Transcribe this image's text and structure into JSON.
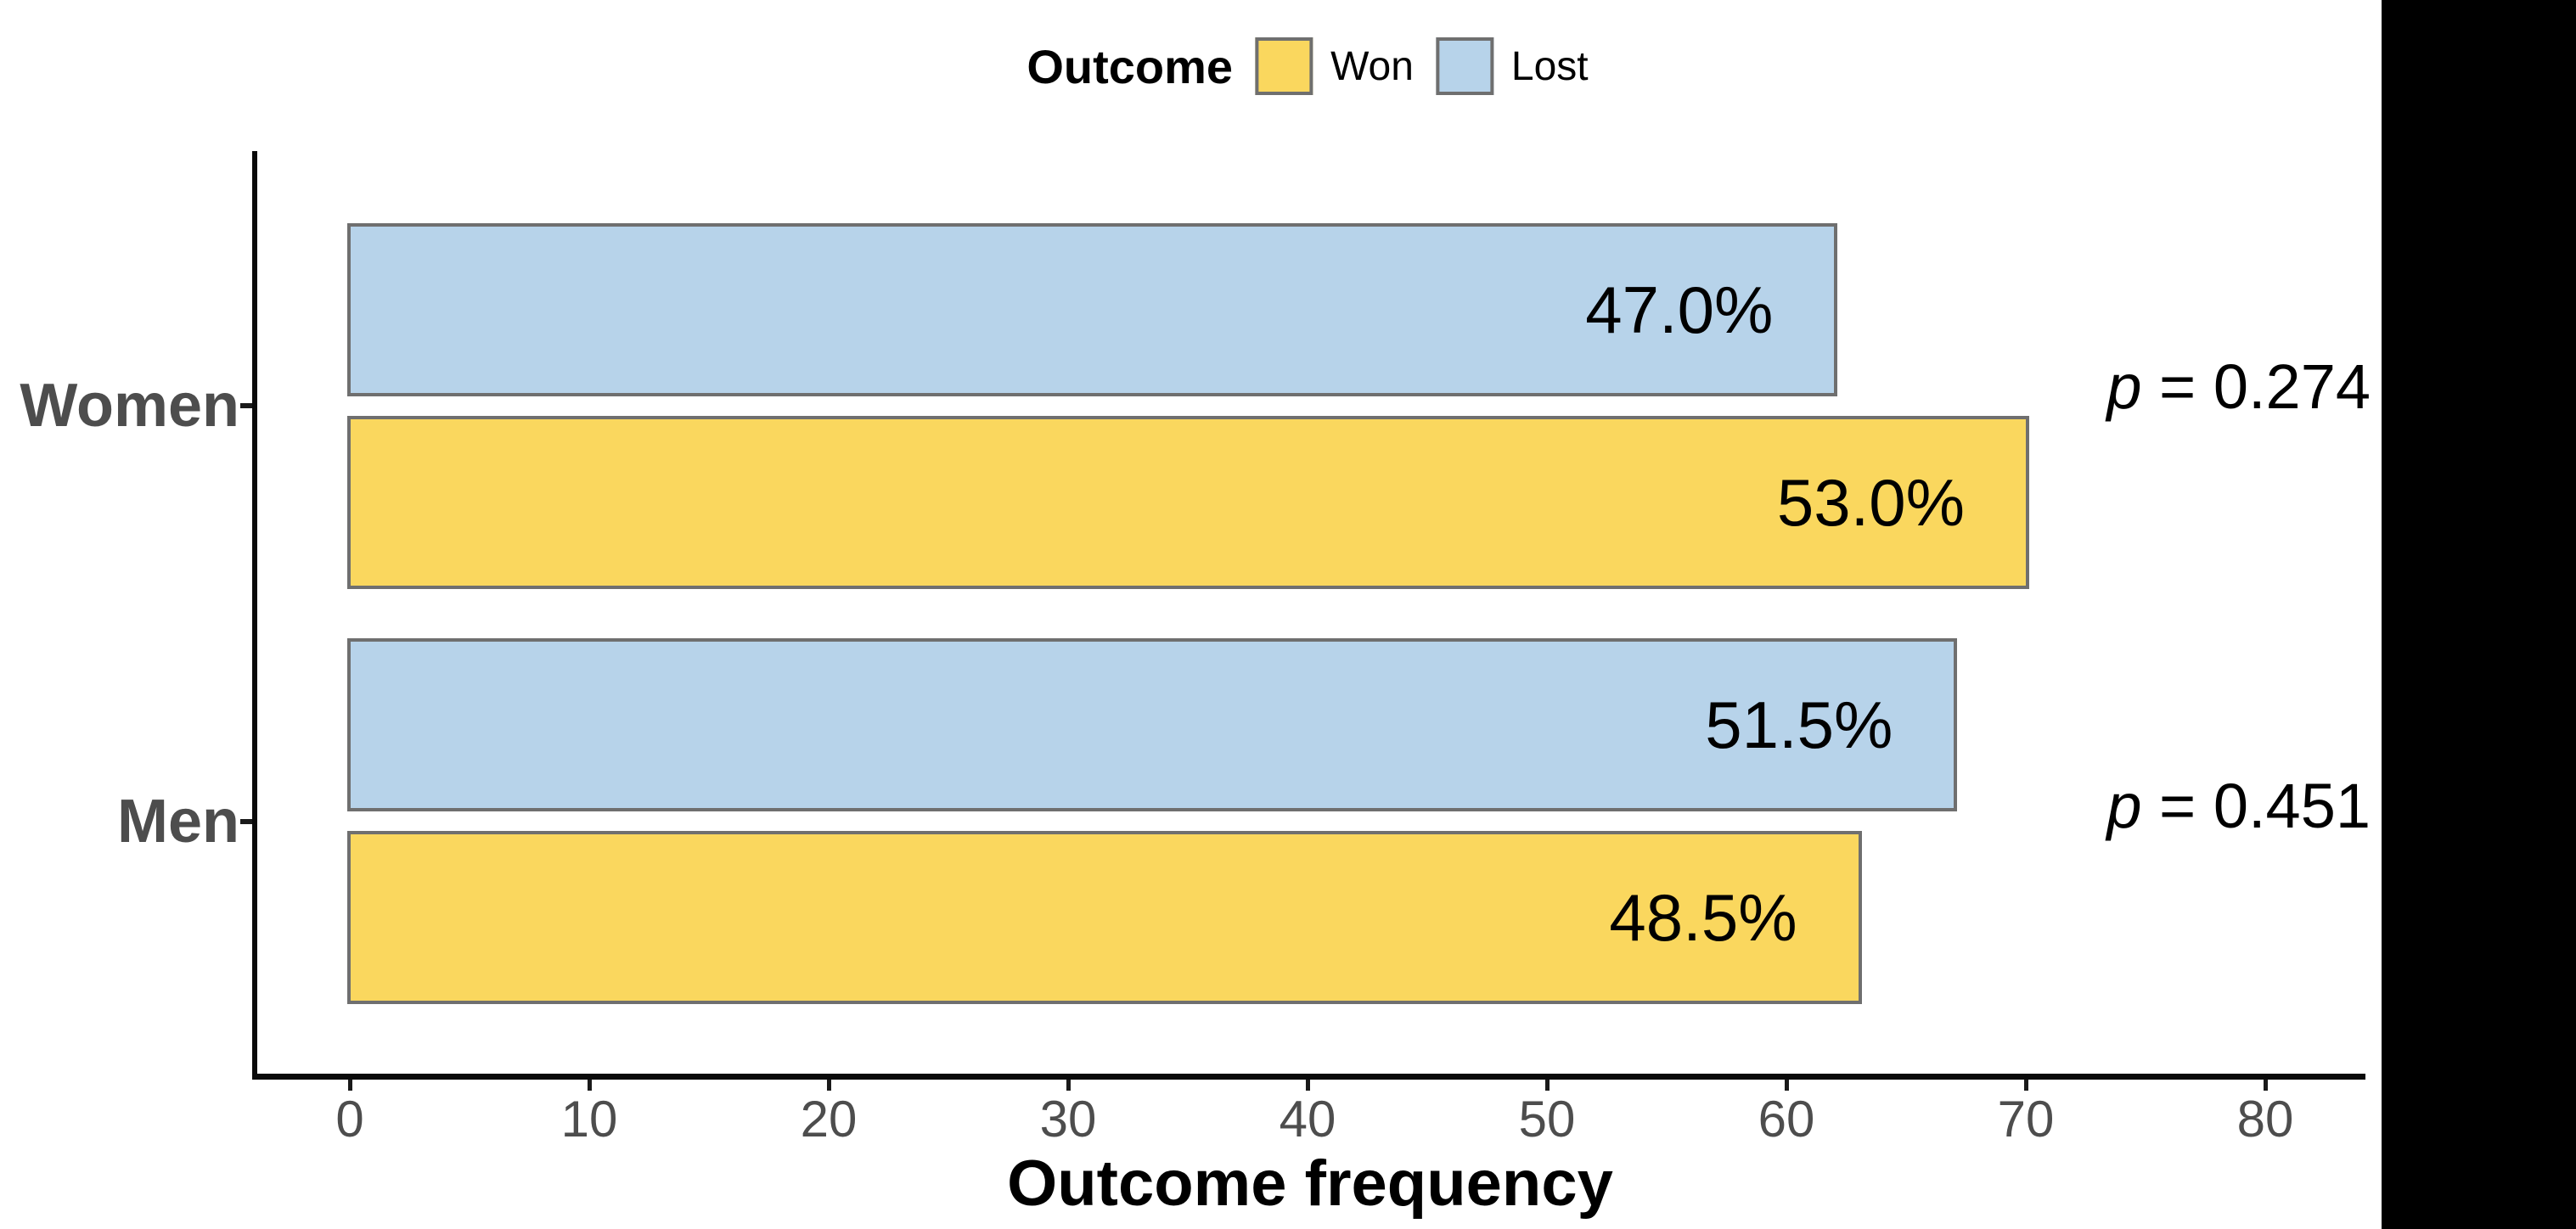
{
  "chart_data": {
    "type": "bar",
    "orientation": "horizontal",
    "xlabel": "Outcome frequency",
    "ylabel": "",
    "legend_title": "Outcome",
    "legend_position": "top",
    "grid": false,
    "categories": [
      "Women",
      "Men"
    ],
    "series": [
      {
        "name": "Won",
        "color": "#FAD75E",
        "values": [
          70,
          63
        ],
        "percent_labels": [
          "53.0%",
          "48.5%"
        ]
      },
      {
        "name": "Lost",
        "color": "#B7D3EA",
        "values": [
          62,
          67
        ],
        "percent_labels": [
          "47.0%",
          "51.5%"
        ]
      }
    ],
    "bar_order_top_to_bottom": [
      "Women Lost",
      "Women Won",
      "Men Lost",
      "Men Won"
    ],
    "x_ticks": [
      0,
      10,
      20,
      30,
      40,
      50,
      60,
      70,
      80
    ],
    "xlim": [
      0,
      84
    ],
    "annotations": [
      {
        "category": "Women",
        "text_italic": "p",
        "text": " = 0.274"
      },
      {
        "category": "Men",
        "text_italic": "p",
        "text": " = 0.451"
      }
    ],
    "colors": {
      "bar_border": "#6F6F6F",
      "axis_line": "#0a0a0a",
      "axis_text": "#4D4D4D",
      "label_text": "#000000",
      "right_strip": "#000000"
    }
  }
}
